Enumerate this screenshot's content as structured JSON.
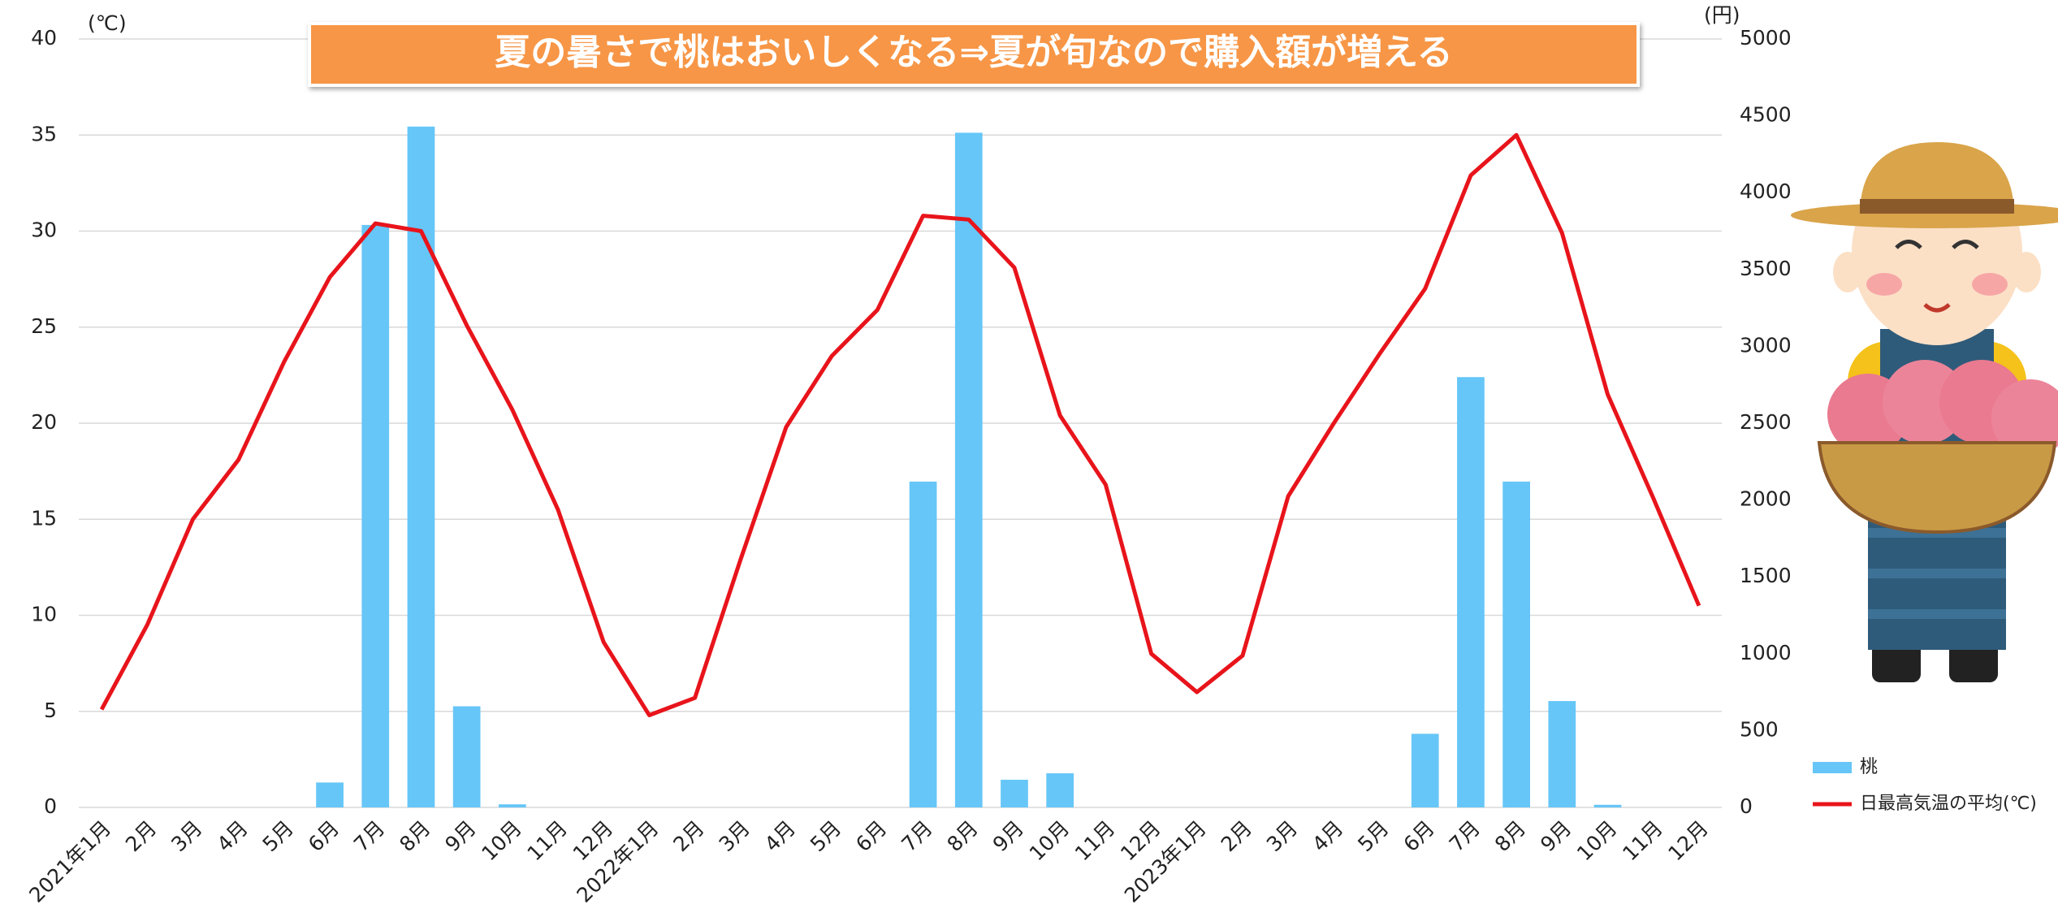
{
  "chart_data": {
    "type": "bar",
    "banner": "夏の暑さで桃はおいしくなる⇒夏が旬なので購入額が増える",
    "y_unit": "(℃)",
    "y2_unit": "(円)",
    "categories": [
      "2021年1月",
      "2月",
      "3月",
      "4月",
      "5月",
      "6月",
      "7月",
      "8月",
      "9月",
      "10月",
      "11月",
      "12月",
      "2022年1月",
      "2月",
      "3月",
      "4月",
      "5月",
      "6月",
      "7月",
      "8月",
      "9月",
      "10月",
      "11月",
      "12月",
      "2023年1月",
      "2月",
      "3月",
      "4月",
      "5月",
      "6月",
      "7月",
      "8月",
      "9月",
      "10月",
      "11月",
      "12月"
    ],
    "series": [
      {
        "name": "桃",
        "type": "bar",
        "axis": "y2",
        "color": "#66c6f7",
        "values": [
          0,
          0,
          0,
          0,
          0,
          162,
          3790,
          4430,
          658,
          20,
          0,
          0,
          0,
          0,
          0,
          0,
          0,
          0,
          2120,
          4390,
          180,
          222,
          0,
          0,
          0,
          0,
          0,
          0,
          0,
          479,
          2800,
          2120,
          692,
          17,
          0,
          0
        ]
      },
      {
        "name": "日最高気温の平均(℃)",
        "type": "line",
        "color": "#e8141b",
        "values": [
          5.1,
          9.5,
          15.0,
          18.1,
          23.2,
          27.6,
          30.4,
          30.0,
          25.1,
          20.7,
          15.5,
          8.6,
          4.8,
          5.7,
          12.9,
          19.8,
          23.5,
          25.9,
          30.8,
          30.6,
          28.1,
          20.4,
          16.8,
          8.0,
          6.0,
          7.9,
          16.2,
          20.0,
          23.6,
          27.0,
          32.9,
          35.0,
          29.9,
          21.5,
          16.1,
          10.5
        ]
      }
    ],
    "ylim": [
      0,
      40
    ],
    "yticks": [
      0,
      5,
      10,
      15,
      20,
      25,
      30,
      35,
      40
    ],
    "y2lim": [
      0,
      5000
    ],
    "y2ticks": [
      0,
      500,
      1000,
      1500,
      2000,
      2500,
      3000,
      3500,
      4000,
      4500,
      5000
    ],
    "grid": true
  }
}
